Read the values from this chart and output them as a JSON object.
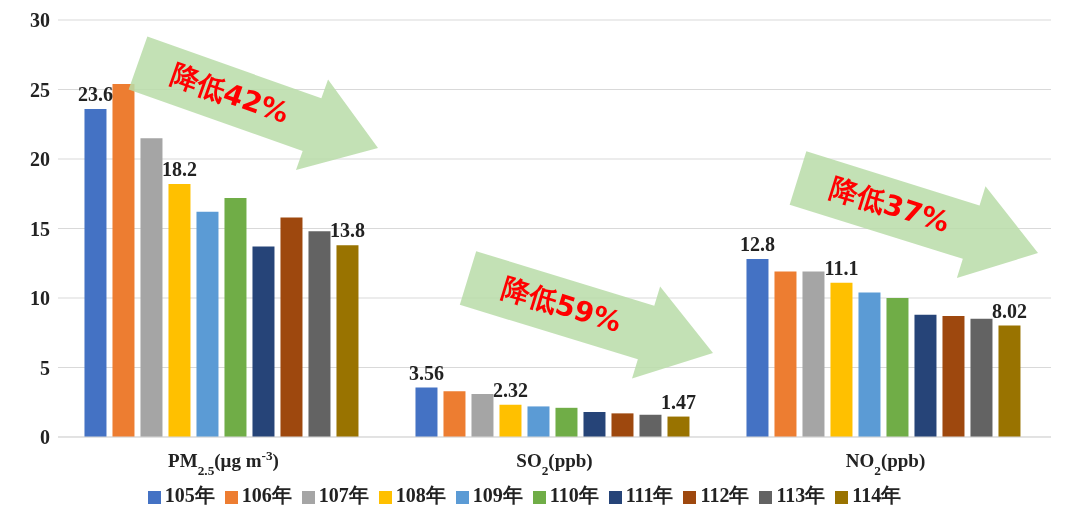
{
  "chart_data": {
    "type": "bar",
    "categories": [
      "PM$_{2.5}$(μg m$^{-3}$)",
      "SO$_{2}$(ppb)",
      "NO$_{2}$(ppb)"
    ],
    "series": [
      {
        "name": "105年",
        "color": "#4472c4",
        "values": [
          23.6,
          3.56,
          12.8
        ],
        "value_labels": [
          "23.6",
          "3.56",
          "12.8"
        ]
      },
      {
        "name": "106年",
        "color": "#ed7d31",
        "values": [
          25.4,
          3.3,
          11.9
        ]
      },
      {
        "name": "107年",
        "color": "#a5a5a5",
        "values": [
          21.5,
          3.1,
          11.9
        ]
      },
      {
        "name": "108年",
        "color": "#ffc000",
        "values": [
          18.2,
          2.32,
          11.1
        ],
        "value_labels": [
          "18.2",
          "2.32",
          "11.1"
        ]
      },
      {
        "name": "109年",
        "color": "#5b9bd5",
        "values": [
          16.2,
          2.2,
          10.4
        ]
      },
      {
        "name": "110年",
        "color": "#70ad47",
        "values": [
          17.2,
          2.1,
          10.0
        ]
      },
      {
        "name": "111年",
        "color": "#264478",
        "values": [
          13.7,
          1.8,
          8.8
        ]
      },
      {
        "name": "112年",
        "color": "#9e480e",
        "values": [
          15.8,
          1.7,
          8.7
        ]
      },
      {
        "name": "113年",
        "color": "#636363",
        "values": [
          14.8,
          1.6,
          8.5
        ]
      },
      {
        "name": "114年",
        "color": "#997300",
        "values": [
          13.8,
          1.47,
          8.02
        ],
        "value_labels": [
          "13.8",
          "1.47",
          "8.02"
        ]
      }
    ],
    "ylim": [
      0,
      30
    ],
    "yticks": [
      0,
      5,
      10,
      15,
      20,
      25,
      30
    ],
    "grid": "y",
    "legend": "bottom",
    "annotations": [
      "降低42%",
      "降低59%",
      "降低37%"
    ]
  }
}
